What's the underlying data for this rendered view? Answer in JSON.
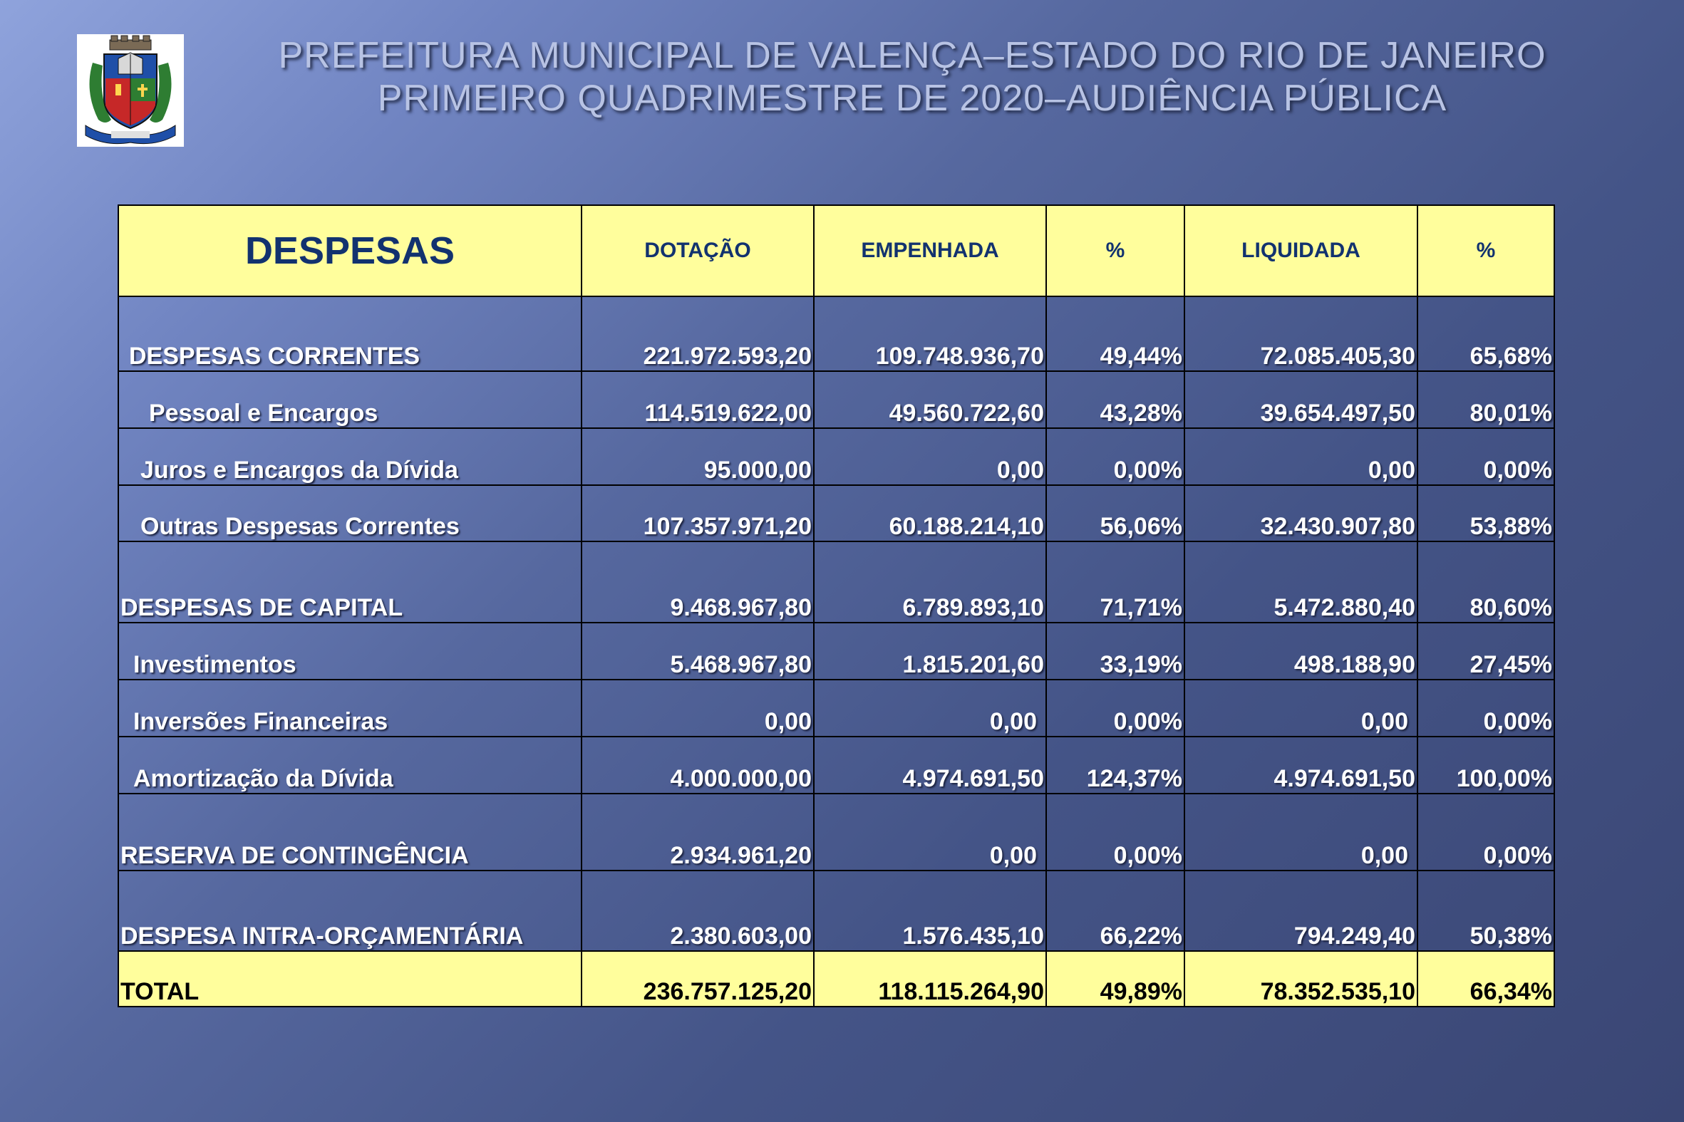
{
  "header": {
    "line1": "PREFEITURA MUNICIPAL DE VALENÇA–ESTADO DO RIO DE JANEIRO",
    "line2": "PRIMEIRO QUADRIMESTRE DE 2020–AUDIÊNCIA PÚBLICA"
  },
  "table": {
    "columns": [
      "DESPESAS",
      "DOTAÇÃO",
      "EMPENHADA",
      "%",
      "LIQUIDADA",
      "%"
    ],
    "rows": [
      {
        "label": "DESPESAS CORRENTES",
        "values": [
          "221.972.593,20",
          "109.748.936,70",
          "49,44%",
          "72.085.405,30",
          "65,68%"
        ]
      },
      {
        "label": "Pessoal e Encargos",
        "values": [
          "114.519.622,00",
          "49.560.722,60",
          "43,28%",
          "39.654.497,50",
          "80,01%"
        ]
      },
      {
        "label": "Juros e Encargos da Dívida",
        "values": [
          "95.000,00",
          "0,00",
          "0,00%",
          "0,00",
          "0,00%"
        ]
      },
      {
        "label": "Outras Despesas Correntes",
        "values": [
          "107.357.971,20",
          "60.188.214,10",
          "56,06%",
          "32.430.907,80",
          "53,88%"
        ]
      },
      {
        "label": "DESPESAS DE CAPITAL",
        "values": [
          "9.468.967,80",
          "6.789.893,10",
          "71,71%",
          "5.472.880,40",
          "80,60%"
        ]
      },
      {
        "label": "Investimentos",
        "values": [
          "5.468.967,80",
          "1.815.201,60",
          "33,19%",
          "498.188,90",
          "27,45%"
        ]
      },
      {
        "label": "Inversões Financeiras",
        "values": [
          "0,00",
          "0,00",
          "0,00%",
          "0,00",
          "0,00%"
        ]
      },
      {
        "label": "Amortização da Dívida",
        "values": [
          "4.000.000,00",
          "4.974.691,50",
          "124,37%",
          "4.974.691,50",
          "100,00%"
        ]
      },
      {
        "label": "RESERVA DE CONTINGÊNCIA",
        "values": [
          "2.934.961,20",
          "0,00",
          "0,00%",
          "0,00",
          "0,00%"
        ]
      },
      {
        "label": "DESPESA INTRA-ORÇAMENTÁRIA",
        "values": [
          "2.380.603,00",
          "1.576.435,10",
          "66,22%",
          "794.249,40",
          "50,38%"
        ]
      },
      {
        "label": "TOTAL",
        "values": [
          "236.757.125,20",
          "118.115.264,90",
          "49,89%",
          "78.352.535,10",
          "66,34%"
        ]
      }
    ]
  },
  "colors": {
    "header_fill": "#fffe9c",
    "header_text": "#12326f",
    "background_dark": "#3a4674",
    "background_light": "#8fa3dc"
  }
}
